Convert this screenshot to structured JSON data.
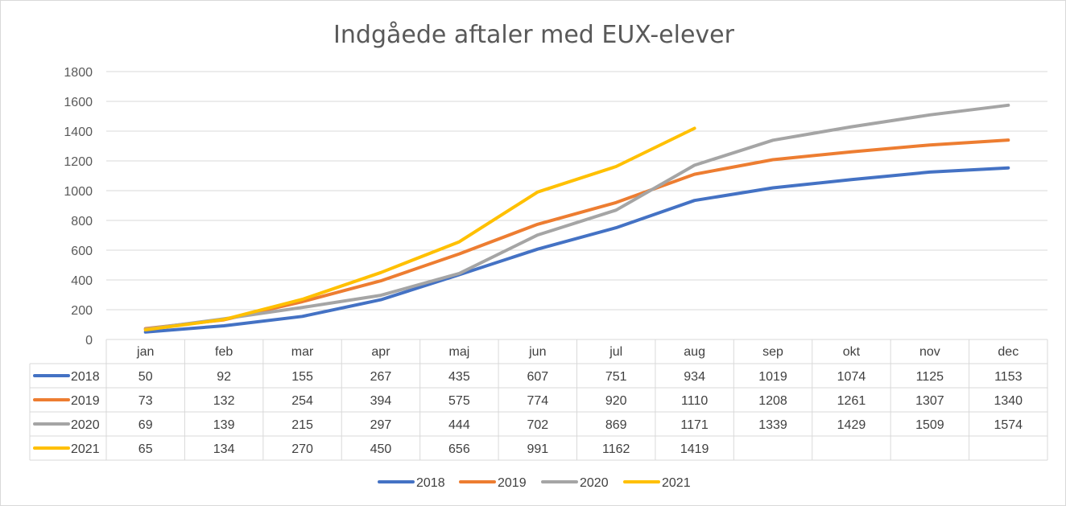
{
  "chart_data": {
    "type": "line",
    "title": "Indgåede aftaler med EUX-elever",
    "xlabel": "",
    "ylabel": "",
    "ylim": [
      0,
      1800
    ],
    "yticks": [
      0,
      200,
      400,
      600,
      800,
      1000,
      1200,
      1400,
      1600,
      1800
    ],
    "categories": [
      "jan",
      "feb",
      "mar",
      "apr",
      "maj",
      "jun",
      "jul",
      "aug",
      "sep",
      "okt",
      "nov",
      "dec"
    ],
    "grid": true,
    "legend_position": "bottom",
    "data_table": true,
    "series": [
      {
        "name": "2018",
        "color": "#4472C4",
        "values": [
          50,
          92,
          155,
          267,
          435,
          607,
          751,
          934,
          1019,
          1074,
          1125,
          1153
        ]
      },
      {
        "name": "2019",
        "color": "#ED7D31",
        "values": [
          73,
          132,
          254,
          394,
          575,
          774,
          920,
          1110,
          1208,
          1261,
          1307,
          1340
        ]
      },
      {
        "name": "2020",
        "color": "#A5A5A5",
        "values": [
          69,
          139,
          215,
          297,
          444,
          702,
          869,
          1171,
          1339,
          1429,
          1509,
          1574
        ]
      },
      {
        "name": "2021",
        "color": "#FFC000",
        "values": [
          65,
          134,
          270,
          450,
          656,
          991,
          1162,
          1419,
          null,
          null,
          null,
          null
        ]
      }
    ]
  }
}
